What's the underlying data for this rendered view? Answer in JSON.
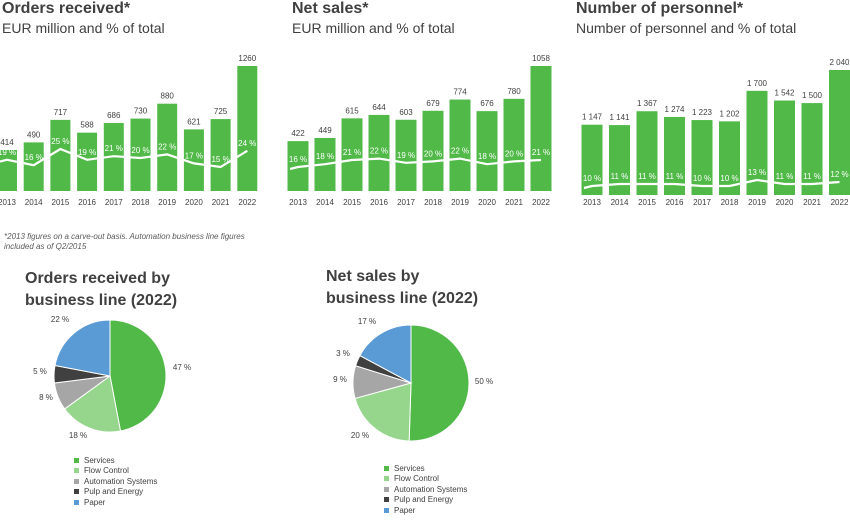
{
  "colors": {
    "bar": "#50b948",
    "trend_line": "#ffffff",
    "services": "#50b948",
    "flow_control": "#95d58c",
    "automation_systems": "#a6a6a6",
    "pulp_and_energy": "#404040",
    "paper": "#5b9bd5"
  },
  "panels": {
    "orders": {
      "title": "Orders received*",
      "subtitle": "EUR million and % of total"
    },
    "net_sales": {
      "title": "Net sales*",
      "subtitle": "EUR million and % of total"
    },
    "personnel": {
      "title": "Number of personnel*",
      "subtitle": "Number of personnel and % of total"
    }
  },
  "footnote": "*2013 figures on a carve-out basis. Automation business line figures included as of Q2/2015",
  "pies": {
    "orders": {
      "title_line1": "Orders received by",
      "title_line2": "business line (2022)"
    },
    "net_sales": {
      "title_line1": "Net sales by",
      "title_line2": "business line (2022)"
    }
  },
  "chart_data": [
    {
      "id": "orders_received",
      "type": "bar",
      "title": "Orders received*",
      "subtitle": "EUR million and % of total",
      "categories": [
        "2013",
        "2014",
        "2015",
        "2016",
        "2017",
        "2018",
        "2019",
        "2020",
        "2021",
        "2022"
      ],
      "values": [
        414,
        490,
        717,
        588,
        686,
        730,
        880,
        621,
        725,
        1260
      ],
      "value_labels": [
        "414",
        "490",
        "717",
        "588",
        "686",
        "730",
        "880",
        "621",
        "725",
        "1260"
      ],
      "share_pct": [
        19,
        16,
        25,
        19,
        21,
        20,
        22,
        17,
        15,
        24
      ],
      "share_labels": [
        "19 %",
        "16 %",
        "25 %",
        "19 %",
        "21 %",
        "20 %",
        "22 %",
        "17 %",
        "15 %",
        "24 %"
      ],
      "ylim": [
        0,
        1400
      ]
    },
    {
      "id": "net_sales",
      "type": "bar",
      "title": "Net sales*",
      "subtitle": "EUR million and % of total",
      "categories": [
        "2013",
        "2014",
        "2015",
        "2016",
        "2017",
        "2018",
        "2019",
        "2020",
        "2021",
        "2022"
      ],
      "values": [
        422,
        449,
        615,
        644,
        603,
        679,
        774,
        676,
        780,
        1058
      ],
      "value_labels": [
        "422",
        "449",
        "615",
        "644",
        "603",
        "679",
        "774",
        "676",
        "780",
        "1058"
      ],
      "share_pct": [
        16,
        18,
        21,
        22,
        19,
        20,
        22,
        18,
        20,
        21
      ],
      "share_labels": [
        "16 %",
        "18 %",
        "21 %",
        "22 %",
        "19 %",
        "20 %",
        "22 %",
        "18 %",
        "20 %",
        "21 %"
      ],
      "ylim": [
        0,
        1200
      ]
    },
    {
      "id": "personnel",
      "type": "bar",
      "title": "Number of personnel*",
      "subtitle": "Number of personnel and % of total",
      "categories": [
        "2013",
        "2014",
        "2015",
        "2016",
        "2017",
        "2018",
        "2019",
        "2020",
        "2021",
        "2022"
      ],
      "values": [
        1147,
        1141,
        1367,
        1274,
        1223,
        1202,
        1700,
        1542,
        1500,
        2040
      ],
      "value_labels": [
        "1 147",
        "1 141",
        "1 367",
        "1 274",
        "1 223",
        "1 202",
        "1 700",
        "1 542",
        "1 500",
        "2 040"
      ],
      "share_pct": [
        10,
        11,
        11,
        11,
        10,
        10,
        13,
        11,
        11,
        12
      ],
      "share_labels": [
        "10 %",
        "11 %",
        "11 %",
        "11 %",
        "10 %",
        "10 %",
        "13 %",
        "11 %",
        "11 %",
        "12 %"
      ],
      "ylim": [
        0,
        2300
      ]
    },
    {
      "id": "orders_by_business_line",
      "type": "pie",
      "title": "Orders received by business line (2022)",
      "labels": [
        "Services",
        "Flow Control",
        "Automation Systems",
        "Pulp and Energy",
        "Paper"
      ],
      "values": [
        47,
        18,
        8,
        5,
        22
      ],
      "value_labels": [
        "47 %",
        "18 %",
        "8 %",
        "5 %",
        "22 %"
      ]
    },
    {
      "id": "net_sales_by_business_line",
      "type": "pie",
      "title": "Net sales by business line (2022)",
      "labels": [
        "Services",
        "Flow Control",
        "Automation Systems",
        "Pulp and Energy",
        "Paper"
      ],
      "values": [
        50,
        20,
        9,
        3,
        17
      ],
      "value_labels": [
        "50 %",
        "20 %",
        "9 %",
        "3 %",
        "17 %"
      ]
    }
  ]
}
